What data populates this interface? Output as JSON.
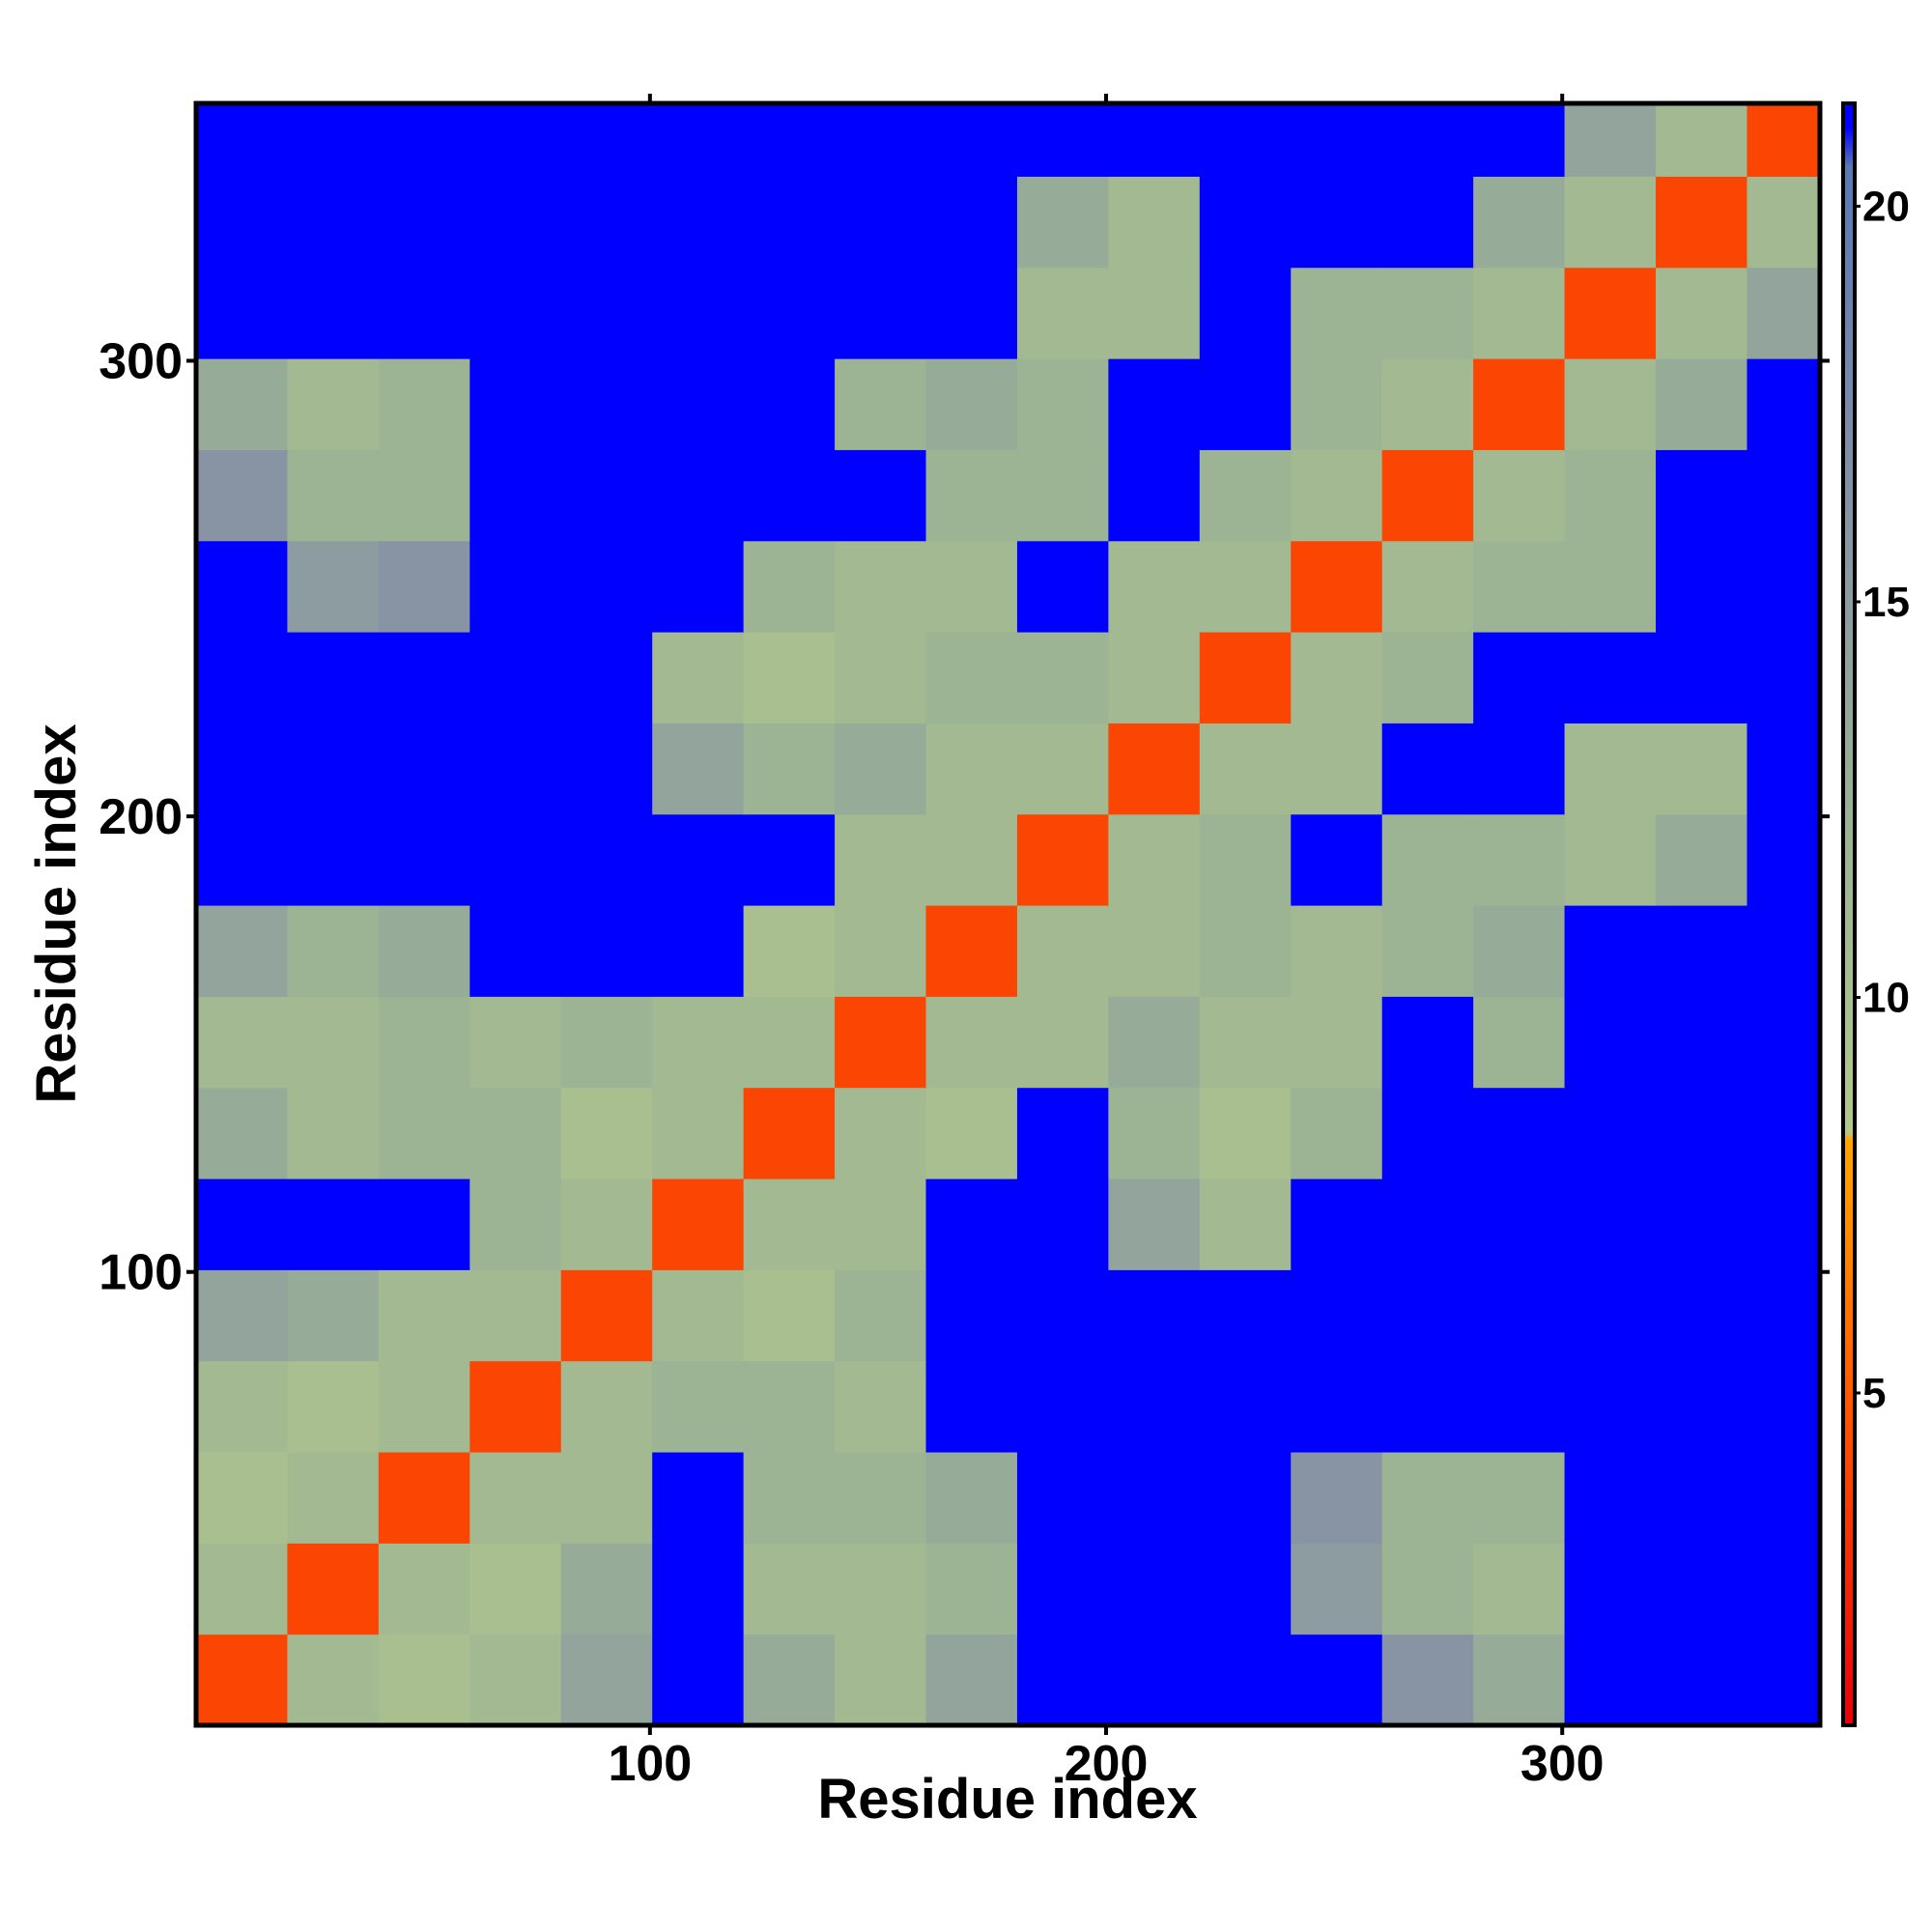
{
  "chart_data": {
    "type": "heatmap",
    "xlabel": "Residue index",
    "ylabel": "Residue index",
    "xlim": [
      0.5,
      356.5
    ],
    "ylim": [
      0.5,
      356.5
    ],
    "xticks": [
      100,
      200,
      300
    ],
    "yticks": [
      100,
      200,
      300
    ],
    "xbins": [
      0.5,
      20.5,
      40.5,
      60.5,
      80.5,
      100.5,
      120.5,
      140.5,
      160.5,
      180.5,
      200.5,
      220.5,
      240.5,
      260.5,
      280.5,
      300.5,
      320.5,
      340.5,
      356.5
    ],
    "ybins": [
      0.5,
      20.5,
      40.5,
      60.5,
      80.5,
      100.5,
      120.5,
      140.5,
      160.5,
      180.5,
      200.5,
      220.5,
      240.5,
      260.5,
      280.5,
      300.5,
      320.5,
      340.5,
      356.5
    ],
    "values": [
      [
        4,
        11,
        10,
        11,
        14,
        21,
        13,
        11,
        14,
        21,
        21,
        21,
        21,
        16,
        13,
        21,
        21,
        21
      ],
      [
        11,
        4,
        11,
        10,
        13,
        21,
        11,
        11,
        12,
        21,
        21,
        21,
        15,
        12,
        11,
        21,
        21,
        21
      ],
      [
        10,
        11,
        4,
        11,
        11,
        21,
        12,
        12,
        13,
        21,
        21,
        21,
        16,
        12,
        12,
        21,
        21,
        21
      ],
      [
        11,
        10,
        11,
        4,
        11,
        12,
        12,
        11,
        21,
        21,
        21,
        21,
        21,
        21,
        21,
        21,
        21,
        21
      ],
      [
        14,
        13,
        11,
        11,
        4,
        11,
        10,
        12,
        21,
        21,
        21,
        21,
        21,
        21,
        21,
        21,
        21,
        21
      ],
      [
        21,
        21,
        21,
        12,
        11,
        4,
        11,
        11,
        21,
        21,
        14,
        11,
        21,
        21,
        21,
        21,
        21,
        21
      ],
      [
        13,
        11,
        12,
        12,
        10,
        11,
        4,
        11,
        10,
        21,
        12,
        10,
        12,
        21,
        21,
        21,
        21,
        21
      ],
      [
        11,
        11,
        12,
        11,
        12,
        11,
        11,
        4,
        11,
        11,
        13,
        11,
        11,
        21,
        12,
        21,
        21,
        21
      ],
      [
        14,
        12,
        13,
        21,
        21,
        21,
        10,
        11,
        4,
        11,
        11,
        12,
        11,
        12,
        13,
        21,
        21,
        21
      ],
      [
        21,
        21,
        21,
        21,
        21,
        21,
        21,
        11,
        11,
        4,
        11,
        12,
        21,
        12,
        12,
        11,
        13,
        21
      ],
      [
        21,
        21,
        21,
        21,
        21,
        14,
        12,
        13,
        11,
        11,
        4,
        11,
        11,
        21,
        21,
        11,
        11,
        21
      ],
      [
        21,
        21,
        21,
        21,
        21,
        11,
        10,
        11,
        12,
        12,
        11,
        4,
        11,
        12,
        21,
        21,
        21,
        21
      ],
      [
        21,
        15,
        16,
        21,
        21,
        21,
        12,
        11,
        11,
        21,
        11,
        11,
        4,
        11,
        12,
        12,
        21,
        21
      ],
      [
        16,
        12,
        12,
        21,
        21,
        21,
        21,
        21,
        12,
        12,
        21,
        12,
        11,
        4,
        11,
        12,
        21,
        21
      ],
      [
        13,
        11,
        12,
        21,
        21,
        21,
        21,
        12,
        13,
        12,
        21,
        21,
        12,
        11,
        4,
        11,
        13,
        21
      ],
      [
        21,
        21,
        21,
        21,
        21,
        21,
        21,
        21,
        21,
        11,
        11,
        21,
        12,
        12,
        11,
        4,
        11,
        14
      ],
      [
        21,
        21,
        21,
        21,
        21,
        21,
        21,
        21,
        21,
        13,
        11,
        21,
        21,
        21,
        13,
        11,
        4,
        11
      ],
      [
        21,
        21,
        21,
        21,
        21,
        21,
        21,
        21,
        21,
        21,
        21,
        21,
        21,
        21,
        21,
        14,
        11,
        4
      ]
    ],
    "clim": [
      0.8,
      21.3
    ],
    "cticks": [
      5,
      10,
      15,
      20
    ],
    "colorscale": [
      {
        "value": 0.8,
        "color": "#e8000b"
      },
      {
        "value": 5,
        "color": "#ff5a00"
      },
      {
        "value": 8.2,
        "color": "#ffa500"
      },
      {
        "value": 8.3,
        "color": "#b4c88c"
      },
      {
        "value": 12,
        "color": "#9cb494"
      },
      {
        "value": 16,
        "color": "#8894a4"
      },
      {
        "value": 20.5,
        "color": "#5a78b4"
      },
      {
        "value": 21,
        "color": "#0000ff"
      },
      {
        "value": 21.3,
        "color": "#0000ff"
      }
    ]
  }
}
